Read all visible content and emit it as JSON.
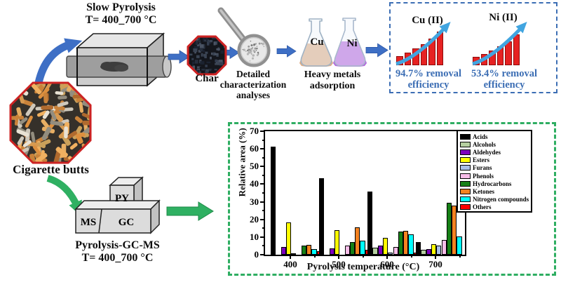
{
  "palette": {
    "blue_arrow": "#3e6fc5",
    "blue_text": "#3c6eb4",
    "green_arrow": "#2fb062",
    "green_border": "#2fae62",
    "octagon_border": "#cc2222",
    "trend_bar_red": "#e62222",
    "trend_arrow_blue": "#41a5e0"
  },
  "top_flow": {
    "furnace_title": "Slow Pyrolysis",
    "furnace_temp": "T= 400_700 °C",
    "char_label": "Char",
    "characterization_label": "Detailed characterization analyses",
    "adsorption_label": "Heavy metals adsorption",
    "flask_cu": "Cu",
    "flask_ni": "Ni"
  },
  "removal_panel": {
    "cu": {
      "title": "Cu (II)",
      "line1": "94.7% removal",
      "line2": "efficiency",
      "bars": [
        13,
        18,
        24,
        30,
        38,
        48
      ]
    },
    "ni": {
      "title": "Ni (II)",
      "line1": "53.4% removal",
      "line2": "efficiency",
      "bars": [
        12,
        16,
        21,
        27,
        34,
        44
      ]
    }
  },
  "bottom_flow": {
    "feedstock_label": "Cigarette butts",
    "py": "PY",
    "gc": "GC",
    "ms": "MS",
    "gcms_title": "Pyrolysis-GC-MS",
    "gcms_temp": "T= 400_700 °C"
  },
  "chart_data": {
    "type": "bar",
    "title": "",
    "xlabel": "Pyrolysis temperature (°C)",
    "ylabel": "Relative area (%)",
    "ylim": [
      0,
      70
    ],
    "yticks": [
      0,
      10,
      20,
      30,
      40,
      50,
      60,
      70
    ],
    "grid": false,
    "legend_position": "upper right",
    "categories": [
      "400",
      "500",
      "600",
      "700"
    ],
    "series": [
      {
        "name": "Acids",
        "color": "#000000",
        "values": [
          61.2,
          43.5,
          35.8,
          7.3
        ]
      },
      {
        "name": "Alcohols",
        "color": "#b5cfa0",
        "values": [
          0,
          0,
          4.0,
          2.8
        ]
      },
      {
        "name": "Aldehydes",
        "color": "#7d00be",
        "values": [
          4.3,
          3.7,
          5.0,
          3.3
        ]
      },
      {
        "name": "Esters",
        "color": "#ffff00",
        "values": [
          18.3,
          14.0,
          9.7,
          5.8
        ]
      },
      {
        "name": "Furans",
        "color": "#a9bfe8",
        "values": [
          1.0,
          0,
          1.2,
          5.0
        ]
      },
      {
        "name": "Phenols",
        "color": "#f8bde9",
        "values": [
          0,
          5.0,
          4.5,
          8.5
        ]
      },
      {
        "name": "Hydrocarbons",
        "color": "#168016",
        "values": [
          5.3,
          7.3,
          13.0,
          29.4
        ]
      },
      {
        "name": "Ketones",
        "color": "#f58220",
        "values": [
          5.5,
          15.5,
          13.5,
          27.8
        ]
      },
      {
        "name": "Nitrogen compounds",
        "color": "#00ffff",
        "values": [
          3.0,
          8.0,
          11.7,
          10.5
        ]
      },
      {
        "name": "Others",
        "color": "#fe0000",
        "values": [
          1.8,
          2.9,
          1.3,
          0
        ]
      }
    ]
  }
}
